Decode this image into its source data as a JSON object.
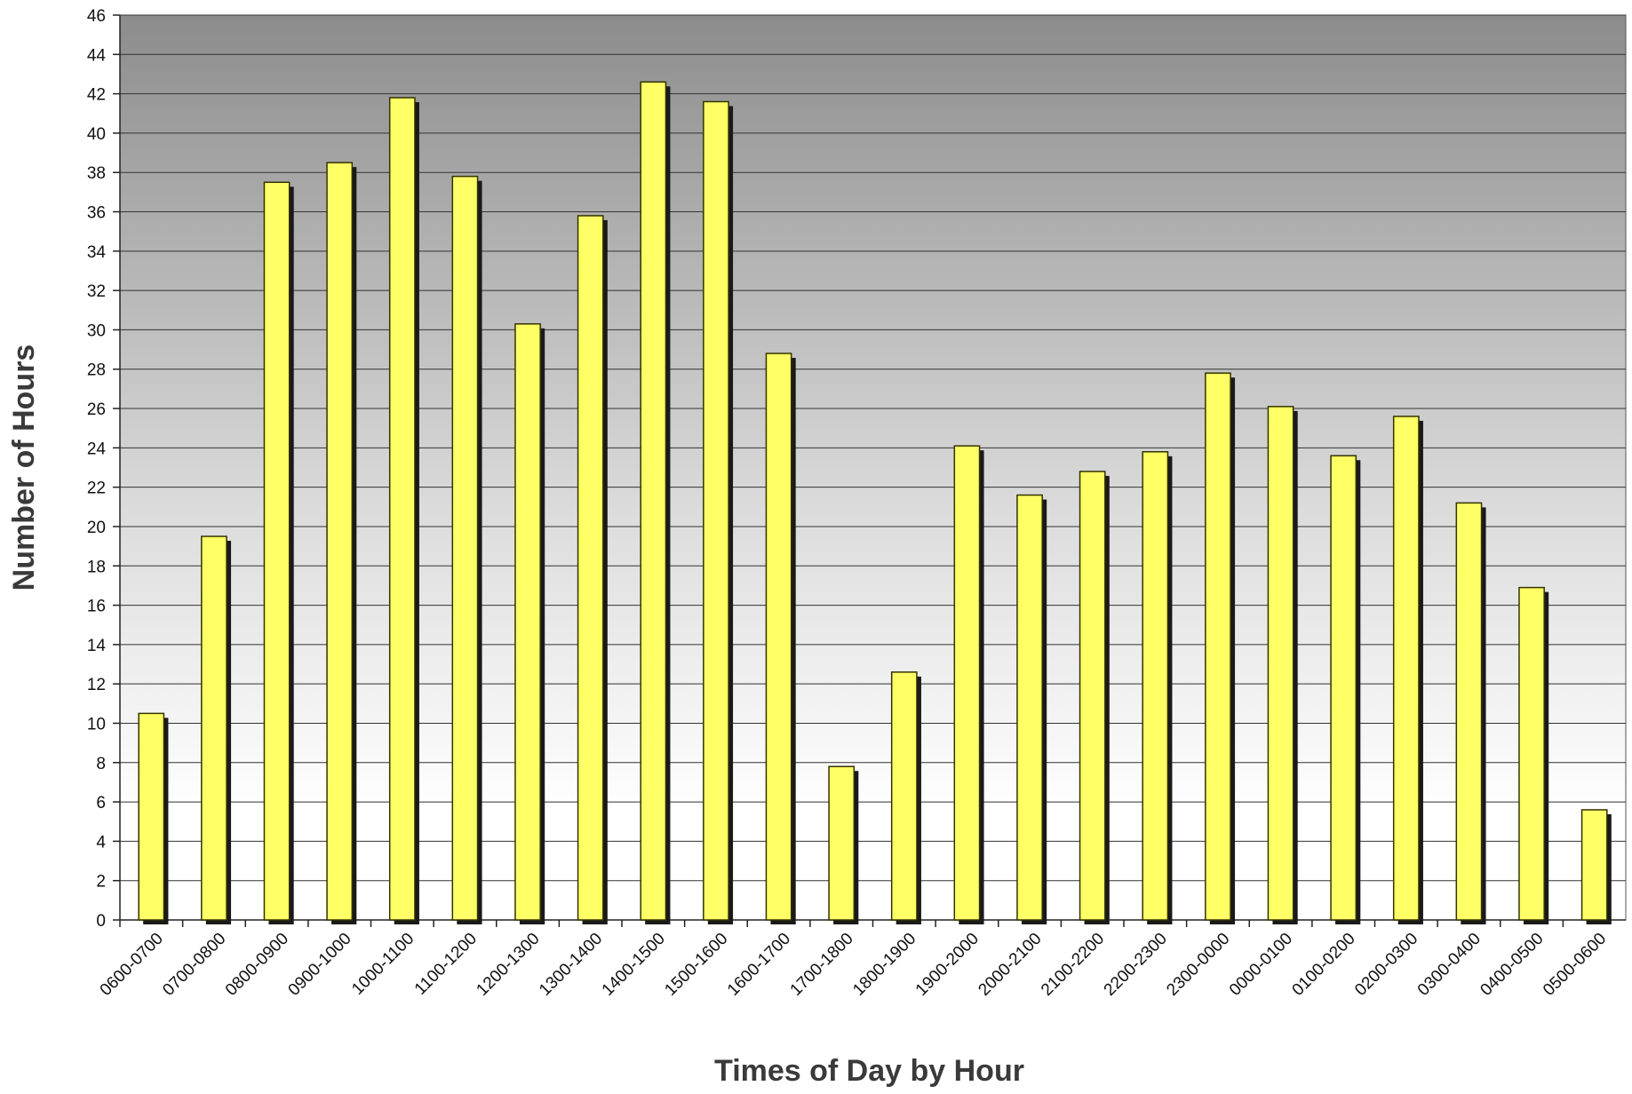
{
  "chart_data": {
    "type": "bar",
    "title": "",
    "xlabel": "Times of Day by Hour",
    "ylabel": "Number of Hours",
    "ylim": [
      0,
      46
    ],
    "ytick_step": 2,
    "grid": true,
    "legend": "none",
    "categories": [
      "0600-0700",
      "0700-0800",
      "0800-0900",
      "0900-1000",
      "1000-1100",
      "1100-1200",
      "1200-1300",
      "1300-1400",
      "1400-1500",
      "1500-1600",
      "1600-1700",
      "1700-1800",
      "1800-1900",
      "1900-2000",
      "2000-2100",
      "2100-2200",
      "2200-2300",
      "2300-0000",
      "0000-0100",
      "0100-0200",
      "0200-0300",
      "0300-0400",
      "0400-0500",
      "0500-0600"
    ],
    "series": [
      {
        "values": [
          10.5,
          19.5,
          37.5,
          38.5,
          41.8,
          37.8,
          30.3,
          35.8,
          42.6,
          41.6,
          28.8,
          7.8,
          12.6,
          24.1,
          21.6,
          22.8,
          23.8,
          27.8,
          26.1,
          23.6,
          25.6,
          21.2,
          16.9,
          5.6
        ],
        "color": "#ffff66"
      }
    ],
    "colors": {
      "bar_fill": "#ffff66",
      "bar_edge": "#333300",
      "bar_shadow": "#1a1a1a",
      "plot_bg_top": "#8c8c8c",
      "plot_bg_bottom": "#ffffff",
      "grid": "#333333"
    }
  }
}
